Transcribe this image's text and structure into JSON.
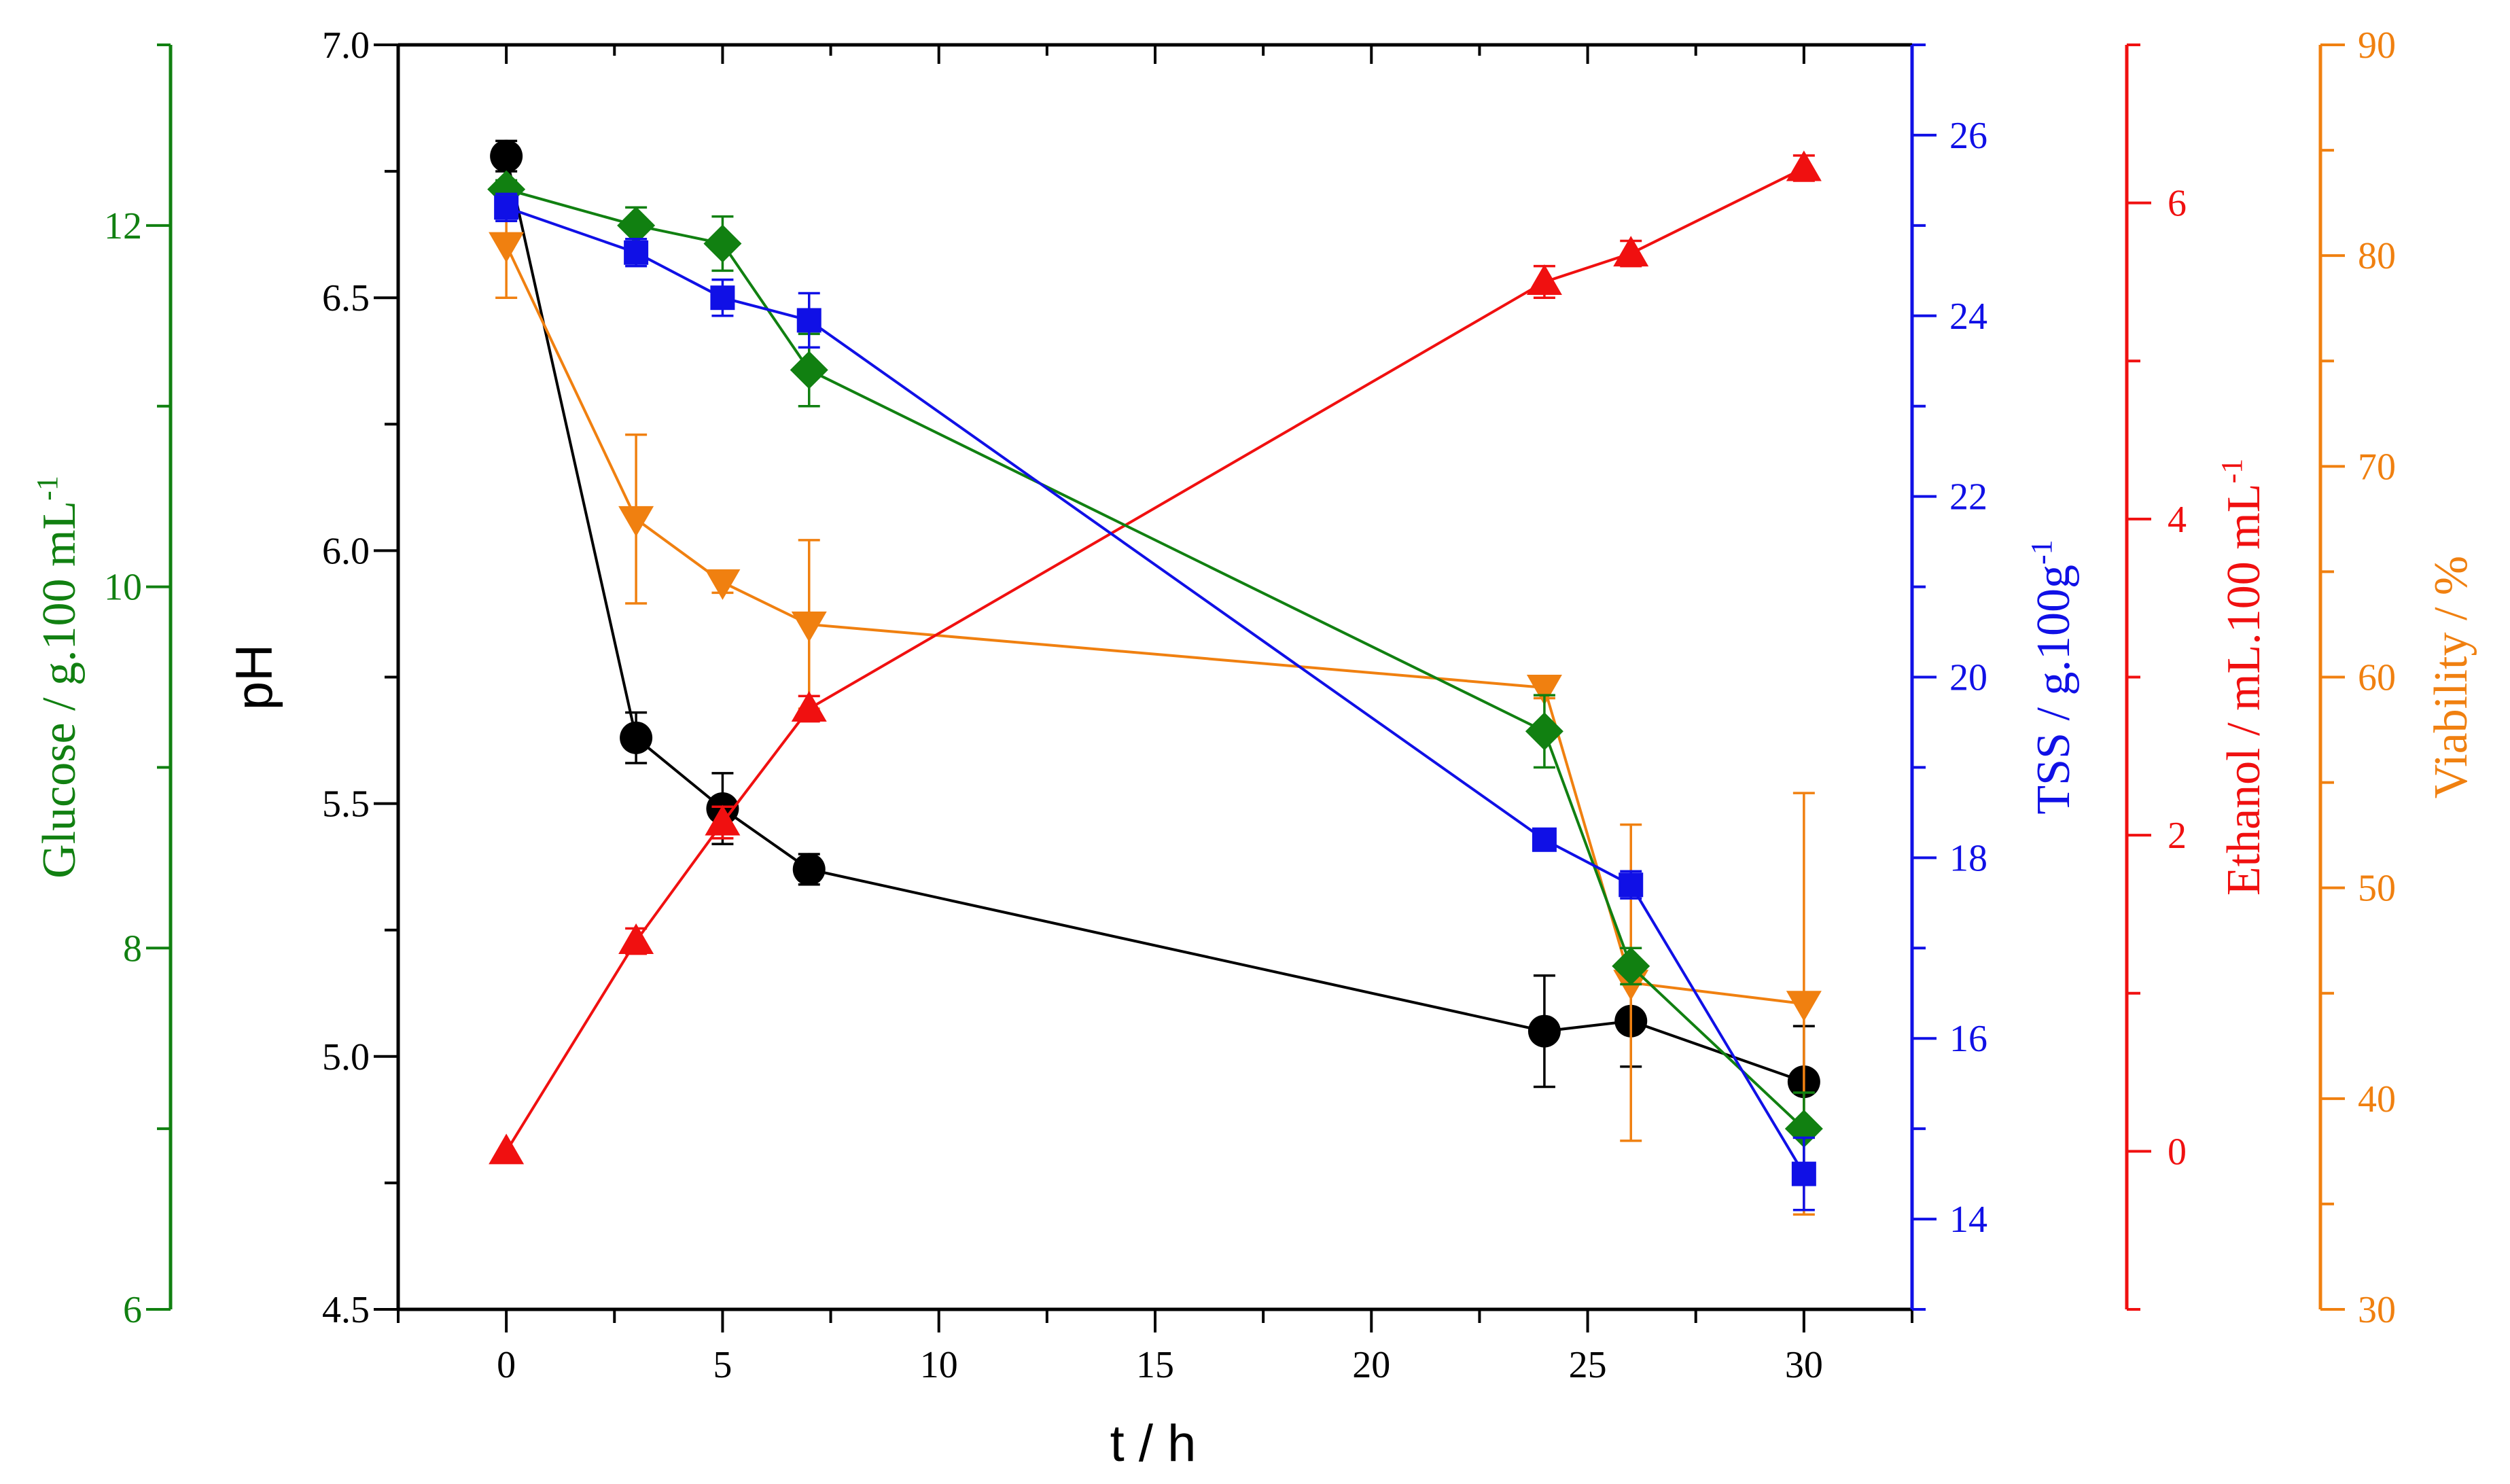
{
  "chart_data": {
    "type": "scatter",
    "title": "",
    "x": [
      0,
      3,
      5,
      7,
      24,
      26,
      30
    ],
    "x_axis": {
      "label": "t / h",
      "min": -2.5,
      "max": 32.5,
      "ticks": [
        0,
        5,
        10,
        15,
        20,
        25,
        30
      ],
      "tick_labels": [
        "0",
        "5",
        "10",
        "15",
        "20",
        "25",
        "30"
      ],
      "minor_step": 2.5
    },
    "y_axes": [
      {
        "id": "ph",
        "side": "left-inner",
        "color": "#000000",
        "label": "pH",
        "min": 4.5,
        "max": 7.0,
        "ticks": [
          4.5,
          5.0,
          5.5,
          6.0,
          6.5,
          7.0
        ],
        "tick_labels": [
          "4.5",
          "5.0",
          "5.5",
          "6.0",
          "6.5",
          "7.0"
        ],
        "minor_step": 0.25
      },
      {
        "id": "glucose",
        "side": "left-outer",
        "color": "#118011",
        "label_main": "Glucose / g.100 mL",
        "label_sup": "-1",
        "min": 6,
        "max": 13,
        "ticks": [
          6,
          8,
          10,
          12
        ],
        "tick_labels": [
          "6",
          "8",
          "10",
          "12"
        ],
        "minor_step": 1
      },
      {
        "id": "tss",
        "side": "right-1",
        "color": "#1010e6",
        "label_main": "TSS / g.100g",
        "label_sup": "-1",
        "min": 13,
        "max": 27,
        "ticks": [
          14,
          16,
          18,
          20,
          22,
          24,
          26
        ],
        "tick_labels": [
          "14",
          "16",
          "18",
          "20",
          "22",
          "24",
          "26"
        ],
        "minor_step": 1
      },
      {
        "id": "ethanol",
        "side": "right-2",
        "color": "#f01010",
        "label_main": "Ethanol / mL.100 mL",
        "label_sup": "-1",
        "min": -1,
        "max": 7,
        "ticks": [
          0,
          2,
          4,
          6
        ],
        "tick_labels": [
          "0",
          "2",
          "4",
          "6"
        ],
        "minor_step": 1
      },
      {
        "id": "viability",
        "side": "right-3",
        "color": "#f08010",
        "label_main": "Viability / %",
        "label_sup": "",
        "min": 30,
        "max": 90,
        "ticks": [
          30,
          40,
          50,
          60,
          70,
          80,
          90
        ],
        "tick_labels": [
          "30",
          "40",
          "50",
          "60",
          "70",
          "80",
          "90"
        ],
        "minor_step": 5
      }
    ],
    "series": [
      {
        "name": "pH",
        "axis": "ph",
        "marker": "circle",
        "color": "#000000",
        "values": [
          6.78,
          5.63,
          5.49,
          5.37,
          5.05,
          5.07,
          4.95
        ],
        "err": [
          0.03,
          0.05,
          0.07,
          0.03,
          0.11,
          0.09,
          0.11
        ]
      },
      {
        "name": "Glucose",
        "axis": "glucose",
        "marker": "diamond",
        "color": "#118011",
        "values": [
          12.2,
          12.0,
          11.9,
          11.2,
          9.2,
          7.9,
          7.0
        ],
        "err": [
          0.05,
          0.1,
          0.15,
          0.2,
          0.2,
          0.1,
          0.2
        ]
      },
      {
        "name": "TSS",
        "axis": "tss",
        "marker": "square",
        "color": "#1010e6",
        "values": [
          25.2,
          24.7,
          24.2,
          23.95,
          18.2,
          17.7,
          14.5
        ],
        "err": [
          0.15,
          0.15,
          0.2,
          0.3,
          0.05,
          0.15,
          0.4
        ]
      },
      {
        "name": "Ethanol",
        "axis": "ethanol",
        "marker": "triangle-up",
        "color": "#f01010",
        "values": [
          0.0,
          1.33,
          2.08,
          2.8,
          5.5,
          5.68,
          6.22
        ],
        "err": [
          0.0,
          0.08,
          0.1,
          0.08,
          0.1,
          0.08,
          0.08
        ]
      },
      {
        "name": "Viability",
        "axis": "viability",
        "marker": "triangle-down",
        "color": "#f08010",
        "values": [
          80.5,
          67.5,
          64.5,
          62.5,
          59.5,
          45.5,
          44.5
        ],
        "err": [
          2.5,
          4.0,
          0.5,
          4.0,
          0.5,
          7.5,
          10.0
        ]
      }
    ]
  }
}
